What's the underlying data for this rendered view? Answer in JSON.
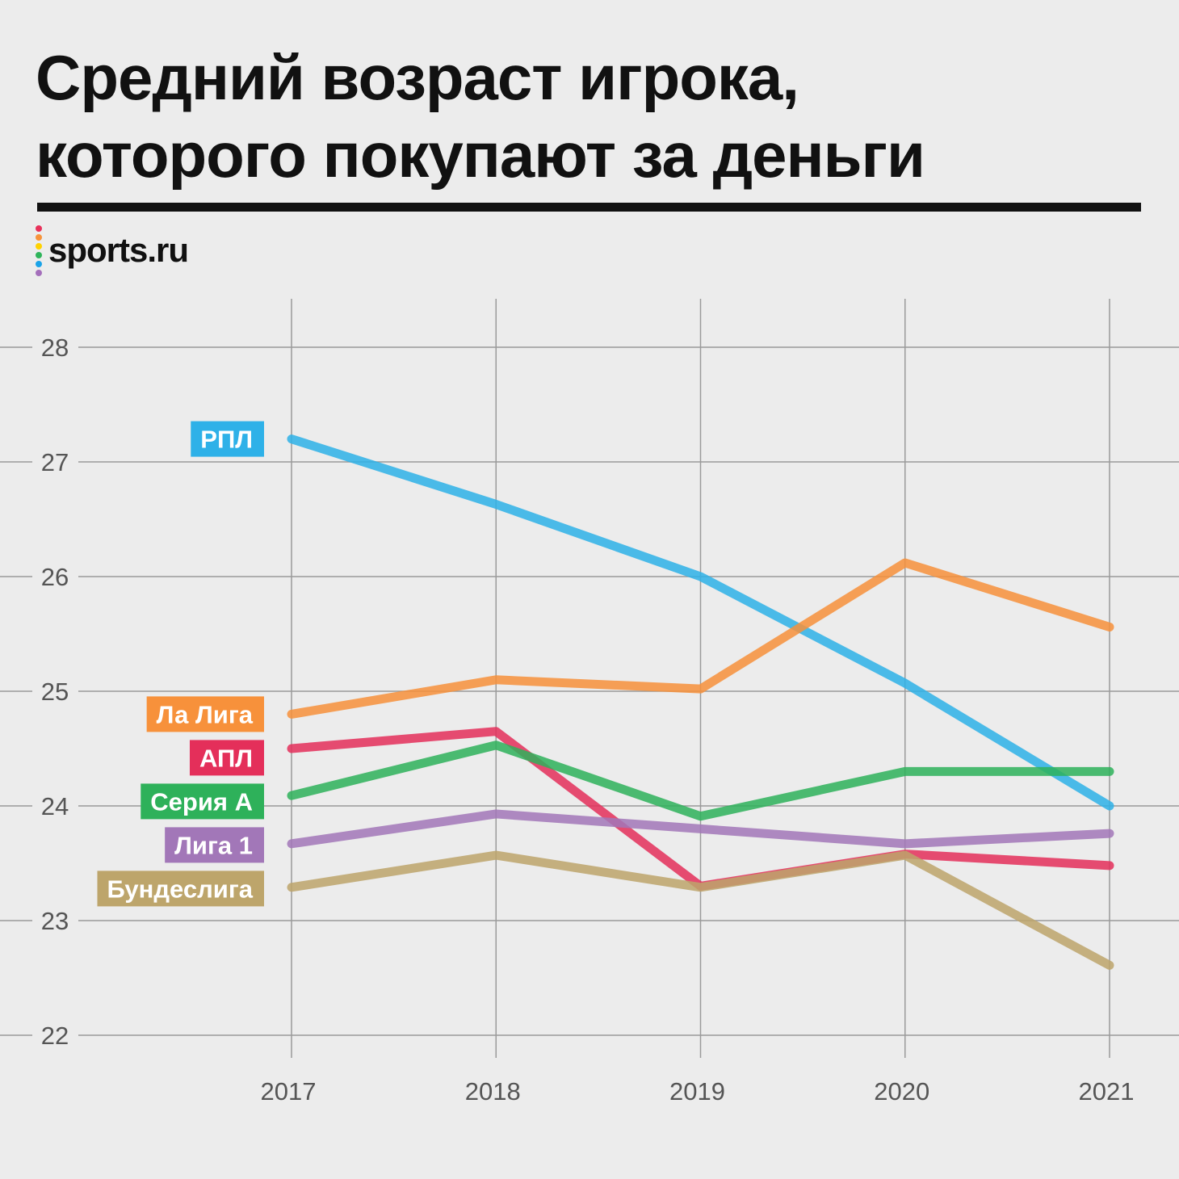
{
  "header": {
    "title_line1": "Средний возраст игрока,",
    "title_line2": "которого покупают за деньги",
    "brand": "sports.ru",
    "brand_dot_colors": [
      "#e8315a",
      "#f7933a",
      "#ffd200",
      "#2fb45a",
      "#1aa3e8",
      "#a46fbb"
    ]
  },
  "chart_data": {
    "type": "line",
    "x": [
      "2017",
      "2018",
      "2019",
      "2020",
      "2021"
    ],
    "ylim": [
      22,
      28
    ],
    "yticks": [
      22,
      23,
      24,
      25,
      26,
      27,
      28
    ],
    "grid": true,
    "legend": "left-labels",
    "series": [
      {
        "name": "РПЛ",
        "color": "#2eb1e8",
        "values": [
          27.2,
          26.63,
          26.0,
          25.07,
          24.0
        ]
      },
      {
        "name": "Ла Лига",
        "color": "#f7913b",
        "values": [
          24.8,
          25.1,
          25.02,
          26.12,
          25.56
        ]
      },
      {
        "name": "АПЛ",
        "color": "#e42f5a",
        "values": [
          24.5,
          24.65,
          23.3,
          23.58,
          23.48
        ]
      },
      {
        "name": "Серия А",
        "color": "#2eb15a",
        "values": [
          24.09,
          24.53,
          23.91,
          24.3,
          24.3
        ]
      },
      {
        "name": "Лига 1",
        "color": "#a277b8",
        "values": [
          23.67,
          23.93,
          23.8,
          23.67,
          23.76
        ]
      },
      {
        "name": "Бундеслига",
        "color": "#bda56b",
        "values": [
          23.29,
          23.57,
          23.29,
          23.57,
          22.61
        ]
      }
    ]
  }
}
